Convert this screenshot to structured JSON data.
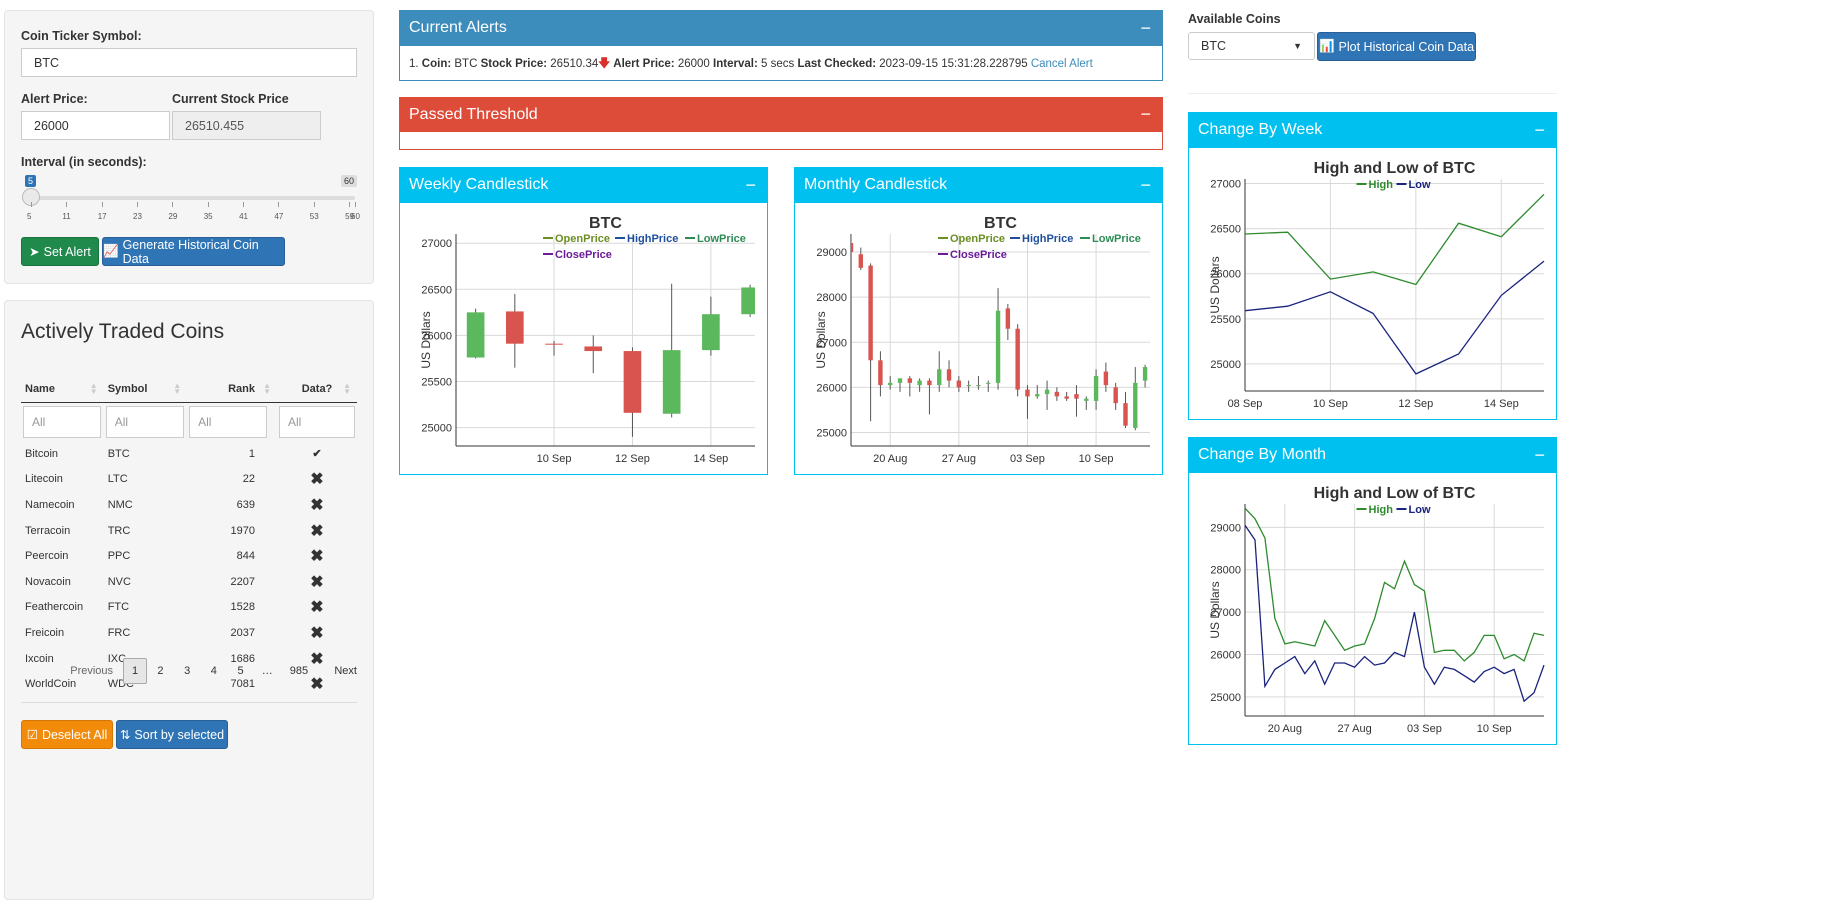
{
  "left_panel": {
    "ticker_label": "Coin Ticker Symbol:",
    "ticker_value": "BTC",
    "alert_price_label": "Alert Price:",
    "alert_price_value": "26000",
    "current_price_label": "Current Stock Price",
    "current_price_value": "26510.455",
    "interval_label": "Interval (in seconds):",
    "slider_value": "5",
    "slider_max": "60",
    "slider_fraction": 0.0,
    "slider_ticks": [
      "5",
      "11",
      "17",
      "23",
      "29",
      "35",
      "41",
      "47",
      "53",
      "59",
      "60"
    ],
    "set_alert_label": "Set Alert",
    "generate_label": "Generate Historical Coin Data"
  },
  "traded": {
    "title": "Actively Traded Coins",
    "columns": [
      "Name",
      "Symbol",
      "Rank",
      "Data?"
    ],
    "filter_placeholder": "All",
    "rows": [
      {
        "name": "Bitcoin",
        "symbol": "BTC",
        "rank": "1",
        "data": "✔"
      },
      {
        "name": "Litecoin",
        "symbol": "LTC",
        "rank": "22",
        "data": "✖"
      },
      {
        "name": "Namecoin",
        "symbol": "NMC",
        "rank": "639",
        "data": "✖"
      },
      {
        "name": "Terracoin",
        "symbol": "TRC",
        "rank": "1970",
        "data": "✖"
      },
      {
        "name": "Peercoin",
        "symbol": "PPC",
        "rank": "844",
        "data": "✖"
      },
      {
        "name": "Novacoin",
        "symbol": "NVC",
        "rank": "2207",
        "data": "✖"
      },
      {
        "name": "Feathercoin",
        "symbol": "FTC",
        "rank": "1528",
        "data": "✖"
      },
      {
        "name": "Freicoin",
        "symbol": "FRC",
        "rank": "2037",
        "data": "✖"
      },
      {
        "name": "Ixcoin",
        "symbol": "IXC",
        "rank": "1686",
        "data": "✖"
      },
      {
        "name": "WorldCoin",
        "symbol": "WDC",
        "rank": "7081",
        "data": "✖"
      }
    ],
    "pager": {
      "previous": "Previous",
      "pages": [
        "1",
        "2",
        "3",
        "4",
        "5",
        "…",
        "985"
      ],
      "next": "Next"
    },
    "deselect_label": "Deselect All",
    "sort_label": "Sort by selected"
  },
  "alerts": {
    "title": "Current Alerts",
    "minus": "−",
    "line": {
      "index": "1.",
      "coin_label": "Coin:",
      "coin": "BTC",
      "stock_label": "Stock Price:",
      "stock": "26510.34",
      "alert_label": "Alert Price:",
      "alert": "26000",
      "interval_label": "Interval:",
      "interval": "5 secs",
      "checked_label": "Last Checked:",
      "checked": "2023-09-15 15:31:28.228795",
      "cancel": "Cancel Alert"
    }
  },
  "passed": {
    "title": "Passed Threshold",
    "minus": "−"
  },
  "weekly_box": {
    "title": "Weekly Candlestick",
    "minus": "−"
  },
  "monthly_box": {
    "title": "Monthly Candlestick",
    "minus": "−"
  },
  "right_panel": {
    "available_label": "Available Coins",
    "selected_coin": "BTC",
    "plot_label": "Plot Historical Coin Data"
  },
  "week_box": {
    "title": "Change By Week",
    "minus": "−"
  },
  "month_box": {
    "title": "Change By Month",
    "minus": "−"
  },
  "colors": {
    "blue_header": "#3c8dbc",
    "red_header": "#dd4b39",
    "aqua_header": "#00c0ef",
    "up": "#5cb85c",
    "down": "#d9534f",
    "high": "#2e8b2e",
    "low": "#1a237e"
  },
  "chart_data": [
    {
      "id": "weekly",
      "type": "candlestick",
      "title": "BTC",
      "ylabel": "US Dollars",
      "ylim": [
        24800,
        27100
      ],
      "yticks": [
        25000,
        25500,
        26000,
        26500,
        27000
      ],
      "xticks": [
        {
          "date": "2023-09-10",
          "label": "10 Sep"
        },
        {
          "date": "2023-09-12",
          "label": "12 Sep"
        },
        {
          "date": "2023-09-14",
          "label": "14 Sep"
        }
      ],
      "xlim": [
        "2023-09-07T12:00",
        "2023-09-15T03:00"
      ],
      "legend": [
        {
          "name": "OpenPrice",
          "color": "#6b8e23"
        },
        {
          "name": "HighPrice",
          "color": "#1f4e9c"
        },
        {
          "name": "LowPrice",
          "color": "#2e8b57"
        },
        {
          "name": "ClosePrice",
          "color": "#6a1b9a"
        }
      ],
      "candles": [
        {
          "date": "2023-09-08",
          "open": 25760,
          "high": 26290,
          "low": 25750,
          "close": 26250
        },
        {
          "date": "2023-09-09",
          "open": 26260,
          "high": 26450,
          "low": 25650,
          "close": 25910
        },
        {
          "date": "2023-09-10",
          "open": 25910,
          "high": 25940,
          "low": 25780,
          "close": 25900
        },
        {
          "date": "2023-09-11",
          "open": 25880,
          "high": 26000,
          "low": 25590,
          "close": 25830
        },
        {
          "date": "2023-09-12",
          "open": 25830,
          "high": 25870,
          "low": 24900,
          "close": 25160
        },
        {
          "date": "2023-09-13",
          "open": 25150,
          "high": 26560,
          "low": 25110,
          "close": 25840
        },
        {
          "date": "2023-09-14",
          "open": 25840,
          "high": 26420,
          "low": 25780,
          "close": 26230
        },
        {
          "date": "2023-09-15",
          "open": 26230,
          "high": 26550,
          "low": 26200,
          "close": 26520
        }
      ]
    },
    {
      "id": "monthly",
      "type": "candlestick",
      "title": "BTC",
      "ylabel": "US Dollars",
      "ylim": [
        24700,
        29400
      ],
      "yticks": [
        25000,
        26000,
        27000,
        28000,
        29000
      ],
      "xticks": [
        {
          "date": "2023-08-20",
          "label": "20 Aug"
        },
        {
          "date": "2023-08-27",
          "label": "27 Aug"
        },
        {
          "date": "2023-09-03",
          "label": "03 Sep"
        },
        {
          "date": "2023-09-10",
          "label": "10 Sep"
        }
      ],
      "xlim": [
        "2023-08-16T00:00",
        "2023-09-15T12:00"
      ],
      "legend": [
        {
          "name": "OpenPrice",
          "color": "#6b8e23"
        },
        {
          "name": "HighPrice",
          "color": "#1f4e9c"
        },
        {
          "name": "LowPrice",
          "color": "#2e8b57"
        },
        {
          "name": "ClosePrice",
          "color": "#6a1b9a"
        }
      ],
      "candles": [
        {
          "date": "2023-08-16",
          "open": 29200,
          "high": 29400,
          "low": 29000,
          "close": 29000
        },
        {
          "date": "2023-08-17",
          "open": 28950,
          "high": 29100,
          "low": 28600,
          "close": 28650
        },
        {
          "date": "2023-08-18",
          "open": 28700,
          "high": 28750,
          "low": 25250,
          "close": 26600
        },
        {
          "date": "2023-08-19",
          "open": 26600,
          "high": 26800,
          "low": 25800,
          "close": 26050
        },
        {
          "date": "2023-08-20",
          "open": 26050,
          "high": 26250,
          "low": 25950,
          "close": 26100
        },
        {
          "date": "2023-08-21",
          "open": 26100,
          "high": 26200,
          "low": 25900,
          "close": 26200
        },
        {
          "date": "2023-08-22",
          "open": 26200,
          "high": 26250,
          "low": 25800,
          "close": 26100
        },
        {
          "date": "2023-08-23",
          "open": 26050,
          "high": 26200,
          "low": 25900,
          "close": 26150
        },
        {
          "date": "2023-08-24",
          "open": 26150,
          "high": 26200,
          "low": 25400,
          "close": 26050
        },
        {
          "date": "2023-08-25",
          "open": 26050,
          "high": 26800,
          "low": 25900,
          "close": 26400
        },
        {
          "date": "2023-08-26",
          "open": 26400,
          "high": 26600,
          "low": 26000,
          "close": 26150
        },
        {
          "date": "2023-08-27",
          "open": 26150,
          "high": 26250,
          "low": 25900,
          "close": 26000
        },
        {
          "date": "2023-08-28",
          "open": 26050,
          "high": 26150,
          "low": 25900,
          "close": 26050
        },
        {
          "date": "2023-08-29",
          "open": 26050,
          "high": 26250,
          "low": 25950,
          "close": 26050
        },
        {
          "date": "2023-08-30",
          "open": 26100,
          "high": 26150,
          "low": 25900,
          "close": 26100
        },
        {
          "date": "2023-08-31",
          "open": 26100,
          "high": 28200,
          "low": 25950,
          "close": 27700
        },
        {
          "date": "2023-09-01",
          "open": 27750,
          "high": 27850,
          "low": 27050,
          "close": 27300
        },
        {
          "date": "2023-09-02",
          "open": 27300,
          "high": 27400,
          "low": 25800,
          "close": 25950
        },
        {
          "date": "2023-09-03",
          "open": 25950,
          "high": 26050,
          "low": 25300,
          "close": 25800
        },
        {
          "date": "2023-09-04",
          "open": 25800,
          "high": 26050,
          "low": 25750,
          "close": 25850
        },
        {
          "date": "2023-09-05",
          "open": 25850,
          "high": 26150,
          "low": 25500,
          "close": 25950
        },
        {
          "date": "2023-09-06",
          "open": 25900,
          "high": 26000,
          "low": 25700,
          "close": 25800
        },
        {
          "date": "2023-09-07",
          "open": 25800,
          "high": 25900,
          "low": 25700,
          "close": 25750
        },
        {
          "date": "2023-09-08",
          "open": 25850,
          "high": 26050,
          "low": 25350,
          "close": 25750
        },
        {
          "date": "2023-09-09",
          "open": 25700,
          "high": 25800,
          "low": 25500,
          "close": 25750
        },
        {
          "date": "2023-09-10",
          "open": 25700,
          "high": 26400,
          "low": 25500,
          "close": 26250
        },
        {
          "date": "2023-09-11",
          "open": 26350,
          "high": 26550,
          "low": 25900,
          "close": 26050
        },
        {
          "date": "2023-09-12",
          "open": 26000,
          "high": 26100,
          "low": 25500,
          "close": 25650
        },
        {
          "date": "2023-09-13",
          "open": 25650,
          "high": 25900,
          "low": 25100,
          "close": 25150
        },
        {
          "date": "2023-09-14",
          "open": 25100,
          "high": 26450,
          "low": 25050,
          "close": 26100
        },
        {
          "date": "2023-09-15",
          "open": 26150,
          "high": 26500,
          "low": 26000,
          "close": 26450
        }
      ]
    },
    {
      "id": "week-hl",
      "type": "line",
      "title": "High and Low of BTC",
      "ylabel": "US Dollars",
      "ylim": [
        24700,
        27050
      ],
      "yticks": [
        25000,
        25500,
        26000,
        26500,
        27000
      ],
      "xticks": [
        {
          "date": "2023-09-08",
          "label": "08 Sep"
        },
        {
          "date": "2023-09-10",
          "label": "10 Sep"
        },
        {
          "date": "2023-09-12",
          "label": "12 Sep"
        },
        {
          "date": "2023-09-14",
          "label": "14 Sep"
        }
      ],
      "xlim": [
        "2023-09-08T00:00",
        "2023-09-15T00:00"
      ],
      "x": [
        "2023-09-08",
        "2023-09-09",
        "2023-09-10",
        "2023-09-11",
        "2023-09-12",
        "2023-09-13",
        "2023-09-14",
        "2023-09-15"
      ],
      "series": [
        {
          "name": "High",
          "color": "#2e8b2e",
          "values": [
            26440,
            26460,
            25940,
            26020,
            25880,
            26560,
            26410,
            26880
          ]
        },
        {
          "name": "Low",
          "color": "#1a237e",
          "values": [
            25590,
            25640,
            25800,
            25560,
            24890,
            25110,
            25760,
            26140
          ]
        }
      ]
    },
    {
      "id": "month-hl",
      "type": "line",
      "title": "High and Low of BTC",
      "ylabel": "US Dollars",
      "ylim": [
        24550,
        29550
      ],
      "yticks": [
        25000,
        26000,
        27000,
        28000,
        29000
      ],
      "xticks": [
        {
          "date": "2023-08-20",
          "label": "20 Aug"
        },
        {
          "date": "2023-08-27",
          "label": "27 Aug"
        },
        {
          "date": "2023-09-03",
          "label": "03 Sep"
        },
        {
          "date": "2023-09-10",
          "label": "10 Sep"
        }
      ],
      "xlim": [
        "2023-08-16T00:00",
        "2023-09-15T00:00"
      ],
      "x": [
        "2023-08-16",
        "2023-08-17",
        "2023-08-18",
        "2023-08-19",
        "2023-08-20",
        "2023-08-21",
        "2023-08-22",
        "2023-08-23",
        "2023-08-24",
        "2023-08-25",
        "2023-08-26",
        "2023-08-27",
        "2023-08-28",
        "2023-08-29",
        "2023-08-30",
        "2023-08-31",
        "2023-09-01",
        "2023-09-02",
        "2023-09-03",
        "2023-09-04",
        "2023-09-05",
        "2023-09-06",
        "2023-09-07",
        "2023-09-08",
        "2023-09-09",
        "2023-09-10",
        "2023-09-11",
        "2023-09-12",
        "2023-09-13",
        "2023-09-14",
        "2023-09-15"
      ],
      "series": [
        {
          "name": "High",
          "color": "#2e8b2e",
          "values": [
            29450,
            29200,
            28750,
            26850,
            26250,
            26300,
            26250,
            26200,
            26800,
            26450,
            26100,
            26200,
            26250,
            26850,
            27700,
            27550,
            28200,
            27650,
            27500,
            26050,
            26100,
            26100,
            25850,
            26050,
            26450,
            26450,
            25900,
            26000,
            25850,
            26500,
            26450
          ]
        },
        {
          "name": "Low",
          "color": "#1a237e",
          "values": [
            29050,
            28700,
            25250,
            25650,
            25800,
            25950,
            25550,
            25850,
            25300,
            25800,
            25800,
            25700,
            25950,
            25750,
            25800,
            26050,
            25950,
            27000,
            25700,
            25300,
            25700,
            25650,
            25500,
            25350,
            25600,
            25700,
            25550,
            25650,
            24900,
            25100,
            25750
          ]
        }
      ]
    }
  ]
}
